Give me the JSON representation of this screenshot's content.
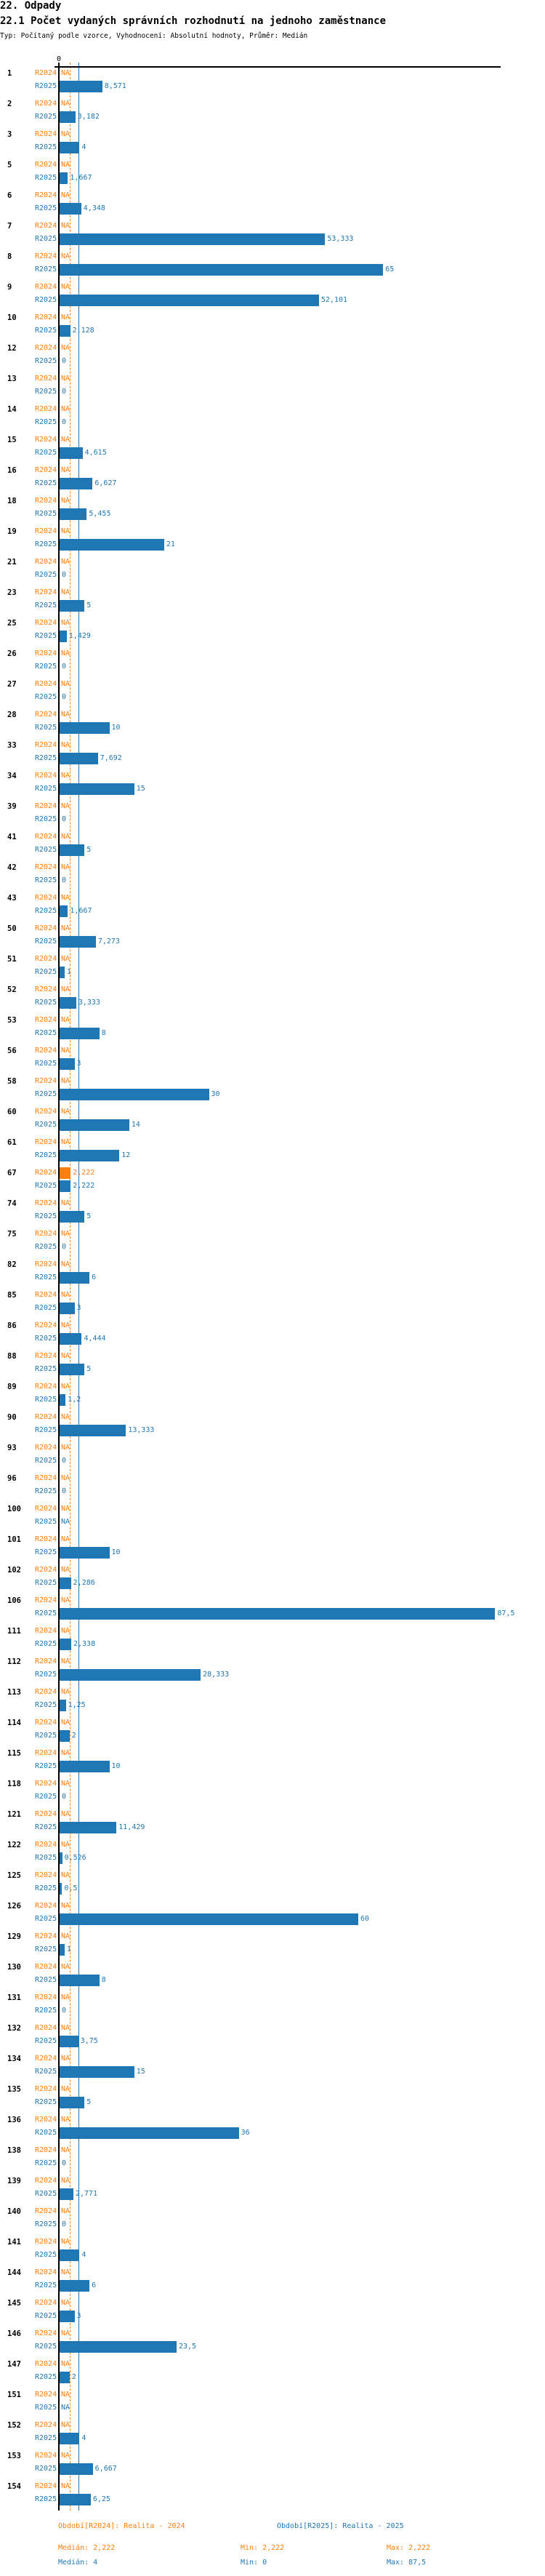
{
  "header": {
    "section": "22. Odpady",
    "title": "22.1 Počet vydaných správních rozhodnutí na jednoho zaměstnance",
    "subtitle": "Typ: Počítaný podle vzorce, Vyhodnocení: Absolutní hodnoty, Průměr: Medián"
  },
  "colors": {
    "r2024": "#ff7f0e",
    "r2025": "#1f77b4",
    "axis": "#000000"
  },
  "chart_data": {
    "type": "bar",
    "orientation": "horizontal",
    "title": "22.1 Počet vydaných správních rozhodnutí na jednoho zaměstnance",
    "xtick_labels": [
      "0"
    ],
    "xlim": [
      0,
      87.5
    ],
    "na_label": "NA",
    "categories": [
      "1",
      "2",
      "3",
      "5",
      "6",
      "7",
      "8",
      "9",
      "10",
      "12",
      "13",
      "14",
      "15",
      "16",
      "18",
      "19",
      "21",
      "23",
      "25",
      "26",
      "27",
      "28",
      "33",
      "34",
      "39",
      "41",
      "42",
      "43",
      "50",
      "51",
      "52",
      "53",
      "56",
      "58",
      "60",
      "61",
      "67",
      "74",
      "75",
      "82",
      "85",
      "86",
      "88",
      "89",
      "90",
      "93",
      "96",
      "100",
      "101",
      "102",
      "106",
      "111",
      "112",
      "113",
      "114",
      "115",
      "118",
      "121",
      "122",
      "125",
      "126",
      "129",
      "130",
      "131",
      "132",
      "134",
      "135",
      "136",
      "138",
      "139",
      "140",
      "141",
      "144",
      "145",
      "146",
      "147",
      "151",
      "152",
      "153",
      "154"
    ],
    "series": [
      {
        "name": "R2024",
        "legend": "Období[R2024]: Realita - 2024",
        "median": 2.222,
        "stats": {
          "median_label": "Medián: 2,222",
          "min_label": "Min: 2,222",
          "max_label": "Max: 2,222"
        },
        "values": [
          null,
          null,
          null,
          null,
          null,
          null,
          null,
          null,
          null,
          null,
          null,
          null,
          null,
          null,
          null,
          null,
          null,
          null,
          null,
          null,
          null,
          null,
          null,
          null,
          null,
          null,
          null,
          null,
          null,
          null,
          null,
          null,
          null,
          null,
          null,
          null,
          2.222,
          null,
          null,
          null,
          null,
          null,
          null,
          null,
          null,
          null,
          null,
          null,
          null,
          null,
          null,
          null,
          null,
          null,
          null,
          null,
          null,
          null,
          null,
          null,
          null,
          null,
          null,
          null,
          null,
          null,
          null,
          null,
          null,
          null,
          null,
          null,
          null,
          null,
          null,
          null,
          null,
          null,
          null,
          null
        ]
      },
      {
        "name": "R2025",
        "legend": "Období[R2025]: Realita - 2025",
        "median": 4,
        "stats": {
          "median_label": "Medián: 4",
          "min_label": "Min: 0",
          "max_label": "Max: 87,5"
        },
        "values": [
          8.571,
          3.182,
          4,
          1.667,
          4.348,
          53.333,
          65,
          52.101,
          2.128,
          0,
          0,
          0,
          4.615,
          6.627,
          5.455,
          21,
          0,
          5,
          1.429,
          0,
          0,
          10,
          7.692,
          15,
          0,
          5,
          0,
          1.667,
          7.273,
          1,
          3.333,
          8,
          3,
          30,
          14,
          12,
          2.222,
          5,
          0,
          6,
          3,
          4.444,
          5,
          1.2,
          13.333,
          0,
          0,
          null,
          10,
          2.286,
          87.5,
          2.338,
          28.333,
          1.25,
          2,
          10,
          0,
          11.429,
          0.526,
          0.5,
          60,
          1,
          8,
          0,
          3.75,
          15,
          5,
          36,
          0,
          2.771,
          0,
          4,
          6,
          3,
          23.5,
          2,
          null,
          4,
          6.667,
          6.25
        ]
      }
    ]
  }
}
